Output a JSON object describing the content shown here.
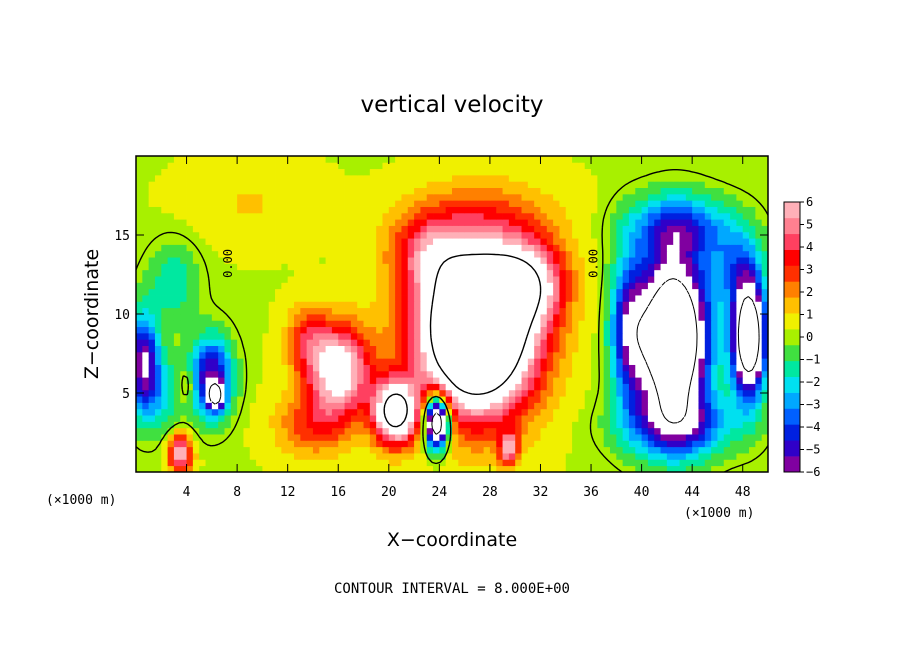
{
  "chart_data": {
    "type": "heatmap",
    "title": "vertical velocity",
    "xlabel": "X−coordinate",
    "ylabel": "Z−coordinate",
    "x_unit": "(×1000 m)",
    "x_unit_right": "(×1000 m)",
    "xlim": [
      0,
      50
    ],
    "ylim": [
      0,
      20
    ],
    "x_ticks": [
      4,
      8,
      12,
      16,
      20,
      24,
      28,
      32,
      36,
      40,
      44,
      48
    ],
    "y_ticks": [
      5,
      10,
      15
    ],
    "contour_interval_text": "CONTOUR INTERVAL = 8.000E+00",
    "zero_contour_labels": [
      "0.00",
      "0.00"
    ],
    "colorbar": {
      "min": -6,
      "max": 6,
      "ticks": [
        "6",
        "5",
        "4",
        "3",
        "2",
        "1",
        "0",
        "−1",
        "−2",
        "−3",
        "−4",
        "−5",
        "−6"
      ],
      "colors": [
        "#8000a0",
        "#3000c8",
        "#0020e0",
        "#0060ff",
        "#00a8ff",
        "#00e0f0",
        "#00e8a0",
        "#40e040",
        "#a8f000",
        "#f0f000",
        "#ffc000",
        "#ff8000",
        "#ff3000",
        "#ff0000",
        "#ff4060",
        "#ff8090",
        "#ffb0b8"
      ],
      "saturation_color": "#ffffff"
    },
    "features": [
      {
        "cx": 27,
        "cz": 9,
        "sx": 4.5,
        "sz": 5.0,
        "w": 15
      },
      {
        "cx": 20.5,
        "cz": 3.8,
        "sx": 1.7,
        "sz": 2.0,
        "w": 9
      },
      {
        "cx": 16,
        "cz": 6.5,
        "sx": 2.5,
        "sz": 2.8,
        "w": 7
      },
      {
        "cx": 13.5,
        "cz": 8.5,
        "sx": 1.6,
        "sz": 2.0,
        "w": 2.5
      },
      {
        "cx": 31,
        "cz": 12,
        "sx": 3.0,
        "sz": 2.5,
        "w": 5
      },
      {
        "cx": 23,
        "cz": 14,
        "sx": 3.0,
        "sz": 2.5,
        "w": 3
      },
      {
        "cx": 28,
        "cz": 16,
        "sx": 6.0,
        "sz": 2.5,
        "w": 1.5
      },
      {
        "cx": 23.8,
        "cz": 3.2,
        "sx": 0.9,
        "sz": 1.6,
        "w": -13
      },
      {
        "cx": 42.5,
        "cz": 8.5,
        "sx": 2.6,
        "sz": 5.0,
        "w": -14
      },
      {
        "cx": 39,
        "cz": 9,
        "sx": 1.5,
        "sz": 4.5,
        "w": -5
      },
      {
        "cx": 43,
        "cz": 15.5,
        "sx": 4.0,
        "sz": 2.0,
        "w": -4
      },
      {
        "cx": 48.5,
        "cz": 8.5,
        "sx": 1.3,
        "sz": 3.5,
        "w": -12
      },
      {
        "cx": 47.5,
        "cz": 13,
        "sx": 2.0,
        "sz": 2.5,
        "w": -3
      },
      {
        "cx": 43,
        "cz": 3,
        "sx": 4.5,
        "sz": 2.0,
        "w": -4
      },
      {
        "cx": 6,
        "cz": 6,
        "sx": 1.6,
        "sz": 2.5,
        "w": -6
      },
      {
        "cx": 6.3,
        "cz": 4.8,
        "sx": 0.6,
        "sz": 0.8,
        "w": -7
      },
      {
        "cx": 0.6,
        "cz": 7,
        "sx": 1.2,
        "sz": 3.0,
        "w": -6
      },
      {
        "cx": 3,
        "cz": 12,
        "sx": 2.0,
        "sz": 2.5,
        "w": -2
      },
      {
        "cx": 2,
        "cz": 5,
        "sx": 2.0,
        "sz": 2.5,
        "w": -2
      },
      {
        "cx": 3.5,
        "cz": 1.2,
        "sx": 0.9,
        "sz": 1.2,
        "w": 6
      },
      {
        "cx": 4,
        "cz": 5.5,
        "sx": 0.6,
        "sz": 1.2,
        "w": 2
      },
      {
        "cx": 9,
        "cz": 17,
        "sx": 5.0,
        "sz": 2.5,
        "w": 0.8
      },
      {
        "cx": 14,
        "cz": 3,
        "sx": 3.0,
        "sz": 2.0,
        "w": 2.5
      },
      {
        "cx": 29.5,
        "cz": 1.5,
        "sx": 0.7,
        "sz": 1.0,
        "w": 5
      }
    ]
  }
}
